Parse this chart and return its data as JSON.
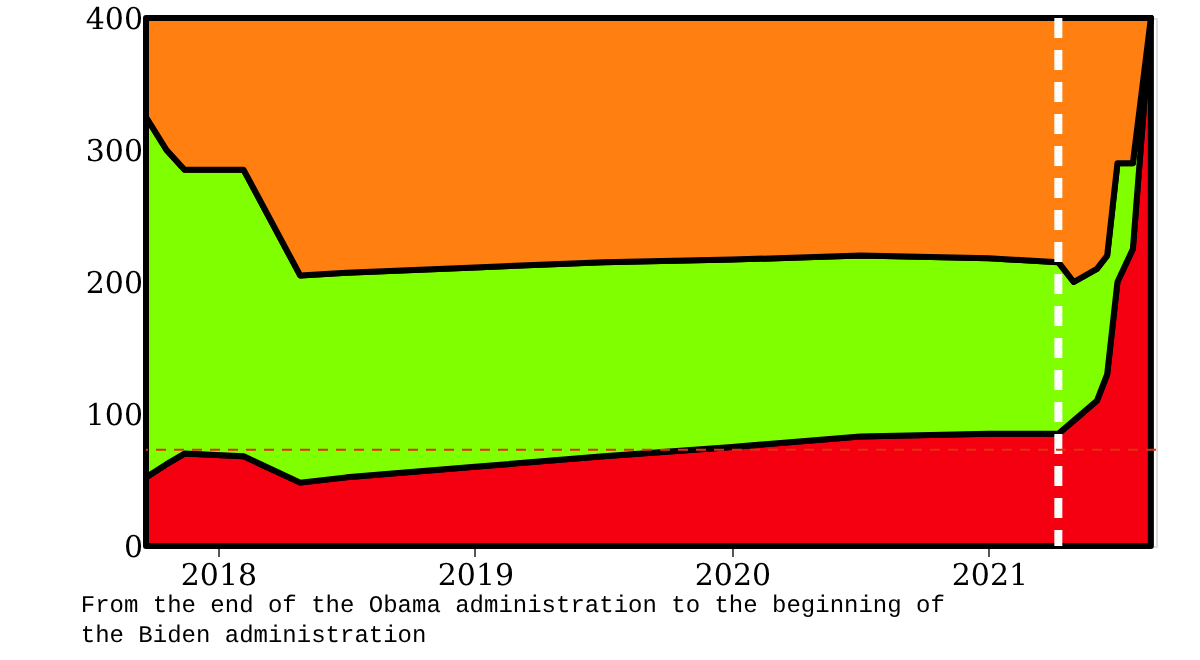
{
  "chart_data": {
    "type": "area",
    "stacked": true,
    "x": [
      2017.72,
      2017.8,
      2017.87,
      2018.1,
      2018.32,
      2018.5,
      2019.0,
      2019.5,
      2020.0,
      2020.5,
      2021.0,
      2021.27,
      2021.33,
      2021.42,
      2021.46,
      2021.5,
      2021.56,
      2021.63
    ],
    "series": [
      {
        "color": "#f50010",
        "values": [
          52,
          62,
          70,
          68,
          48,
          52,
          60,
          68,
          75,
          83,
          85,
          85,
          95,
          110,
          130,
          200,
          225,
          400
        ]
      },
      {
        "color": "#80ff00",
        "values": [
          273,
          238,
          215,
          217,
          157,
          155,
          151,
          147,
          142,
          137,
          133,
          130,
          105,
          100,
          90,
          90,
          65,
          0
        ]
      },
      {
        "color": "#ff8010",
        "values": [
          75,
          100,
          115,
          115,
          195,
          193,
          189,
          185,
          183,
          180,
          182,
          185,
          200,
          190,
          180,
          110,
          110,
          0
        ]
      }
    ],
    "xlim": [
      2017.72,
      2021.65
    ],
    "xticks": [
      2018,
      2019,
      2020,
      2021
    ],
    "ylim": [
      0,
      400
    ],
    "yticks": [
      0,
      100,
      200,
      300,
      400
    ],
    "grid": false,
    "ref_lines": [
      {
        "axis": "x",
        "value": 2021.27,
        "color": "#ffffff",
        "line_style": "dashed"
      },
      {
        "axis": "y",
        "value": 73,
        "color": "#e03010",
        "line_style": "dashed"
      }
    ],
    "annotations": [
      "From the end of the Obama administration to the beginning of",
      "the Biden administration"
    ]
  }
}
